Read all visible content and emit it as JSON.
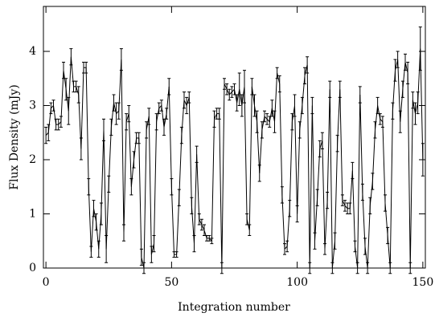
{
  "chart_data": {
    "type": "errorbar",
    "xlabel": "Integration number",
    "ylabel": "Flux Density (mJy)",
    "xlim": [
      -1,
      151
    ],
    "ylim": [
      0,
      4.83
    ],
    "xticks": [
      0,
      50,
      100,
      150
    ],
    "yticks": [
      0,
      1,
      2,
      3,
      4
    ],
    "color": "#000000",
    "series": [
      {
        "x": [
          0,
          1,
          2,
          3,
          4,
          5,
          6,
          7,
          8,
          9,
          10,
          11,
          12,
          13,
          14,
          15,
          16,
          17,
          18,
          19,
          20,
          21,
          22,
          23,
          24,
          25,
          26,
          27,
          28,
          29,
          30,
          31,
          32,
          33,
          34,
          35,
          36,
          37,
          38,
          39,
          40,
          41,
          42,
          43,
          44,
          45,
          46,
          47,
          48,
          49,
          50,
          51,
          52,
          53,
          54,
          55,
          56,
          57,
          58,
          59,
          60,
          61,
          62,
          63,
          64,
          65,
          66,
          67,
          68,
          69,
          70,
          71,
          72,
          73,
          74,
          75,
          76,
          77,
          78,
          79,
          80,
          81,
          82,
          83,
          84,
          85,
          86,
          87,
          88,
          89,
          90,
          91,
          92,
          93,
          94,
          95,
          96,
          97,
          98,
          99,
          100,
          101,
          102,
          103,
          104,
          105,
          106,
          107,
          108,
          109,
          110,
          111,
          112,
          113,
          114,
          115,
          116,
          117,
          118,
          119,
          120,
          121,
          122,
          123,
          124,
          125,
          126,
          127,
          128,
          129,
          130,
          131,
          132,
          133,
          134,
          135,
          136,
          137,
          138,
          139,
          140,
          141,
          142,
          143,
          144,
          145,
          146,
          147,
          148,
          149,
          150
        ],
        "values": [
          2.45,
          2.5,
          2.95,
          3.0,
          2.65,
          2.65,
          2.7,
          3.65,
          3.3,
          2.9,
          3.9,
          3.35,
          3.35,
          3.2,
          2.2,
          3.7,
          3.7,
          1.5,
          0.3,
          1.1,
          0.85,
          0.35,
          1.0,
          2.55,
          0.35,
          1.55,
          2.6,
          3.05,
          2.85,
          2.9,
          3.85,
          0.65,
          2.7,
          2.85,
          1.5,
          2.0,
          2.4,
          2.4,
          0.2,
          0.0,
          2.55,
          2.8,
          0.25,
          0.45,
          2.7,
          2.95,
          3.0,
          2.6,
          2.85,
          3.35,
          1.5,
          0.25,
          0.25,
          1.3,
          2.45,
          3.1,
          3.0,
          3.15,
          1.15,
          0.45,
          2.1,
          0.9,
          0.8,
          0.7,
          0.55,
          0.55,
          0.5,
          2.75,
          2.85,
          2.85,
          0.0,
          3.4,
          3.3,
          3.2,
          3.25,
          3.3,
          3.05,
          3.3,
          3.0,
          3.35,
          0.9,
          0.7,
          3.35,
          3.0,
          2.7,
          1.75,
          2.55,
          2.8,
          2.75,
          2.7,
          2.95,
          2.7,
          3.6,
          3.4,
          1.35,
          0.35,
          0.4,
          1.1,
          2.7,
          3.0,
          1.0,
          2.55,
          3.0,
          3.55,
          3.75,
          0.0,
          3.0,
          0.5,
          1.3,
          2.2,
          2.35,
          0.35,
          1.25,
          3.3,
          0.0,
          0.5,
          2.3,
          3.3,
          1.25,
          1.15,
          1.1,
          1.1,
          1.8,
          0.4,
          0.0,
          3.2,
          1.4,
          0.4,
          0.0,
          1.15,
          1.6,
          2.55,
          3.0,
          2.75,
          2.7,
          1.2,
          0.6,
          0.0,
          2.9,
          3.65,
          3.85,
          2.7,
          3.3,
          3.8,
          3.6,
          0.0,
          3.1,
          2.85,
          3.05,
          4.05,
          2.0
        ],
        "errors": [
          0.15,
          0.15,
          0.1,
          0.1,
          0.1,
          0.1,
          0.1,
          0.15,
          0.2,
          0.25,
          0.15,
          0.1,
          0.1,
          0.15,
          0.2,
          0.1,
          0.1,
          0.15,
          0.1,
          0.15,
          0.15,
          0.15,
          0.2,
          0.2,
          0.25,
          0.15,
          0.15,
          0.15,
          0.2,
          0.15,
          0.2,
          0.15,
          0.15,
          0.15,
          0.15,
          0.15,
          0.1,
          0.1,
          0.15,
          0.1,
          0.15,
          0.15,
          0.15,
          0.15,
          0.15,
          0.1,
          0.1,
          0.15,
          0.1,
          0.15,
          0.15,
          0.05,
          0.05,
          0.15,
          0.15,
          0.15,
          0.15,
          0.1,
          0.15,
          0.15,
          0.15,
          0.1,
          0.1,
          0.1,
          0.05,
          0.05,
          0.05,
          0.15,
          0.1,
          0.1,
          0.1,
          0.1,
          0.1,
          0.1,
          0.1,
          0.1,
          0.15,
          0.3,
          0.2,
          0.3,
          0.1,
          0.1,
          0.15,
          0.2,
          0.2,
          0.15,
          0.15,
          0.1,
          0.1,
          0.1,
          0.15,
          0.2,
          0.1,
          0.15,
          0.15,
          0.1,
          0.1,
          0.15,
          0.15,
          0.2,
          0.15,
          0.15,
          0.15,
          0.15,
          0.15,
          0.1,
          0.15,
          0.15,
          0.15,
          0.15,
          0.15,
          0.1,
          0.15,
          0.15,
          0.1,
          0.15,
          0.15,
          0.15,
          0.1,
          0.1,
          0.1,
          0.1,
          0.15,
          0.1,
          0.1,
          0.15,
          0.15,
          0.15,
          0.1,
          0.15,
          0.15,
          0.15,
          0.15,
          0.1,
          0.1,
          0.15,
          0.15,
          0.1,
          0.15,
          0.2,
          0.15,
          0.2,
          0.15,
          0.15,
          0.2,
          0.1,
          0.15,
          0.2,
          0.2,
          0.4,
          0.3
        ]
      }
    ]
  }
}
